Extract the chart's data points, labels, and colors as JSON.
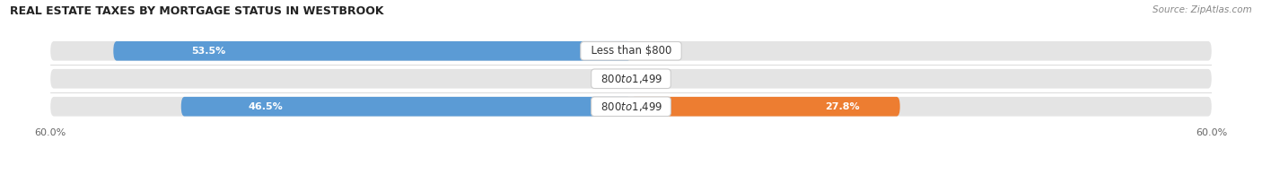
{
  "title": "REAL ESTATE TAXES BY MORTGAGE STATUS IN WESTBROOK",
  "source": "Source: ZipAtlas.com",
  "rows": [
    {
      "label": "Less than $800",
      "without_mortgage": 53.5,
      "with_mortgage": 0.0
    },
    {
      "label": "$800 to $1,499",
      "without_mortgage": 0.0,
      "with_mortgage": 0.0
    },
    {
      "label": "$800 to $1,499",
      "without_mortgage": 46.5,
      "with_mortgage": 27.8
    }
  ],
  "xlim": 60.0,
  "bar_height": 0.7,
  "color_without": "#5b9bd5",
  "color_with": "#ed7d31",
  "color_without_zero": "#aec8e0",
  "bg_bar": "#e4e4e4",
  "label_fontsize": 8.5,
  "title_fontsize": 9,
  "source_fontsize": 7.5,
  "tick_fontsize": 8,
  "legend_fontsize": 8,
  "value_fontsize": 8
}
